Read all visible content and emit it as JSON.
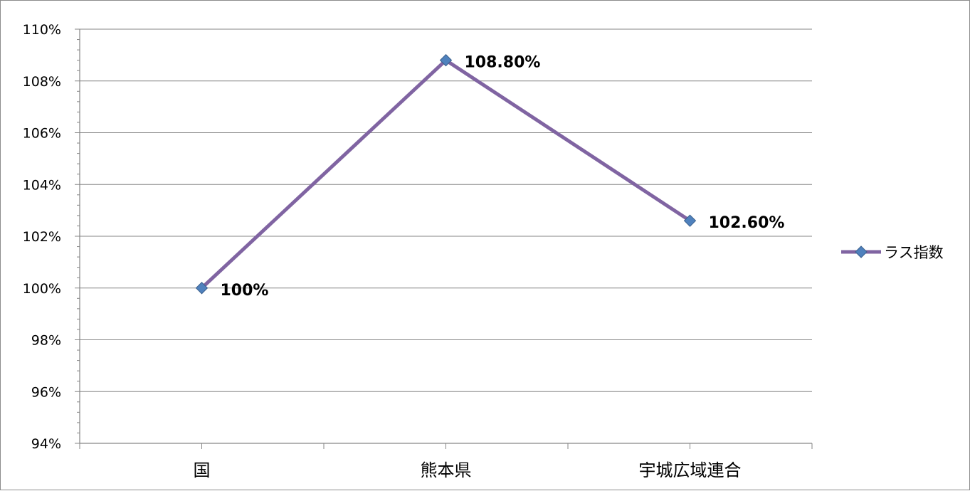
{
  "chart_data": {
    "type": "line",
    "categories": [
      "国",
      "熊本県",
      "宇城広域連合"
    ],
    "series": [
      {
        "name": "ラス指数",
        "values": [
          100,
          108.8,
          102.6
        ],
        "data_labels": [
          "100%",
          "108.80%",
          "102.60%"
        ]
      }
    ],
    "title": "",
    "xlabel": "",
    "ylabel": "",
    "ylim": [
      94,
      110
    ],
    "y_ticks": [
      "94%",
      "96%",
      "98%",
      "100%",
      "102%",
      "104%",
      "106%",
      "108%",
      "110%"
    ],
    "grid": true,
    "legend_position": "right",
    "colors": {
      "line": "#8064A2",
      "marker_fill": "#4F81BD",
      "marker_stroke": "#3A5F8C",
      "grid": "#868686",
      "axis": "#868686"
    }
  }
}
